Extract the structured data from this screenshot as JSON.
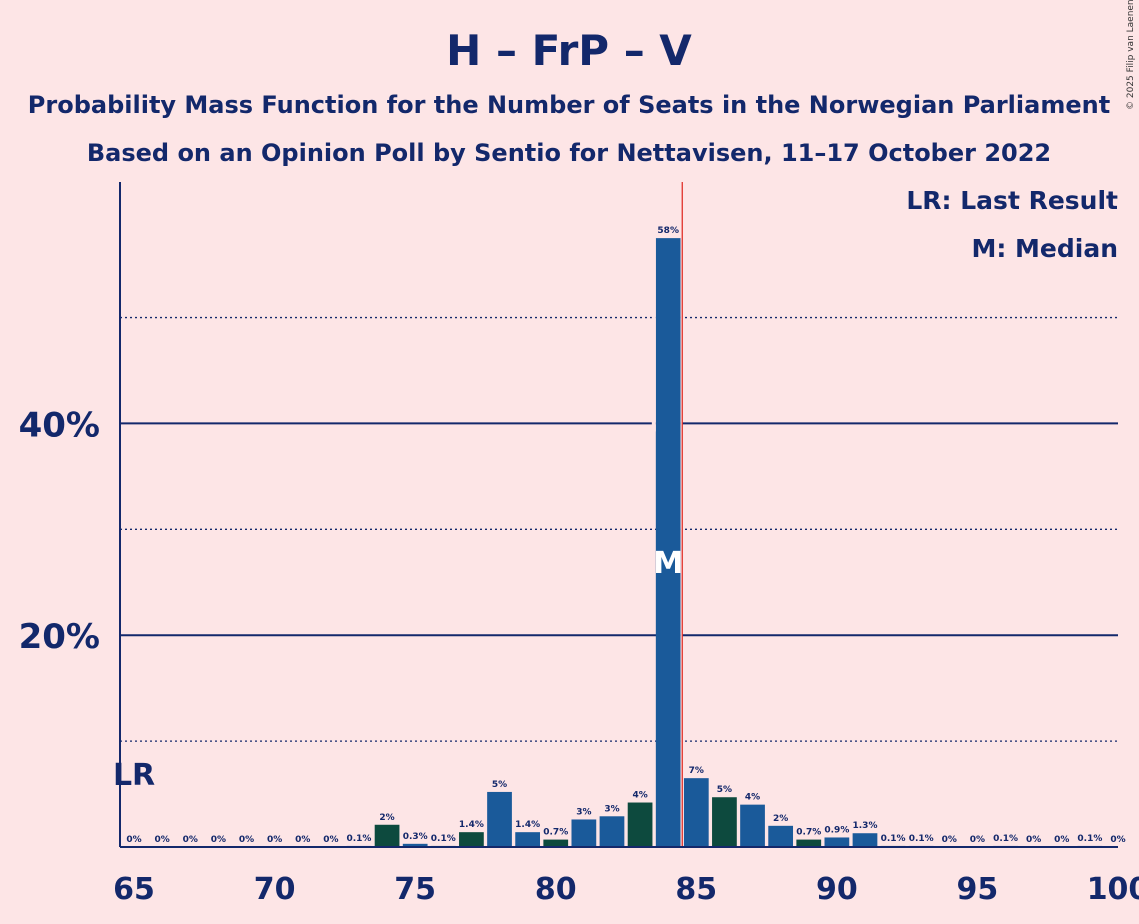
{
  "chart_data": {
    "type": "bar",
    "title": "H – FrP – V",
    "subtitle_line1": "Probability Mass Function for the Number of Seats in the Norwegian Parliament",
    "subtitle_line2": "Based on an Opinion Poll by Sentio for Nettavisen, 11–17 October 2022",
    "copyright": "© 2025 Filip van Laenen",
    "legend": {
      "lr": "LR: Last Result",
      "m": "M: Median",
      "placement": "top-right"
    },
    "lr_label": "LR",
    "median_label": "M",
    "last_result": 65,
    "median": 84,
    "majority_line": 84.5,
    "xlim": [
      65,
      100
    ],
    "ylim": [
      0,
      62.8
    ],
    "x_ticks": [
      65,
      70,
      75,
      80,
      85,
      90,
      95,
      100
    ],
    "y_ticks": [
      {
        "value": 20,
        "label": "20%"
      },
      {
        "value": 40,
        "label": "40%"
      }
    ],
    "minor_gridlines": [
      10,
      30,
      50
    ],
    "seats": [
      65,
      66,
      67,
      68,
      69,
      70,
      71,
      72,
      73,
      74,
      75,
      76,
      77,
      78,
      79,
      80,
      81,
      82,
      83,
      84,
      85,
      86,
      87,
      88,
      89,
      90,
      91,
      92,
      93,
      94,
      95,
      96,
      97,
      98,
      99,
      100
    ],
    "values": [
      0,
      0,
      0,
      0,
      0,
      0,
      0,
      0,
      0.1,
      2.1,
      0.3,
      0.1,
      1.4,
      5.2,
      1.4,
      0.7,
      2.6,
      2.9,
      4.2,
      57.5,
      6.5,
      4.7,
      4.0,
      2.0,
      0.7,
      0.9,
      1.3,
      0.1,
      0.1,
      0,
      0,
      0.1,
      0,
      0,
      0.1,
      0
    ],
    "labels": [
      "0%",
      "0%",
      "0%",
      "0%",
      "0%",
      "0%",
      "0%",
      "0%",
      "0.1%",
      "2%",
      "0.3%",
      "0.1%",
      "1.4%",
      "5%",
      "1.4%",
      "0.7%",
      "3%",
      "3%",
      "4%",
      "58%",
      "7%",
      "5%",
      "4%",
      "2%",
      "0.7%",
      "0.9%",
      "1.3%",
      "0.1%",
      "0.1%",
      "0%",
      "0%",
      "0.1%",
      "0%",
      "0%",
      "0.1%",
      "0%"
    ],
    "colors": [
      "#1a5a9a",
      "#0d4a3e",
      "#1a5a9a",
      "#0d4a3e",
      "#1a5a9a",
      "#0d4a3e",
      "#1a5a9a",
      "#0d4a3e",
      "#1a5a9a",
      "#0d4a3e",
      "#1a5a9a",
      "#0d4a3e",
      "#0d4a3e",
      "#1a5a9a",
      "#1a5a9a",
      "#0d4a3e",
      "#1a5a9a",
      "#1a5a9a",
      "#0d4a3e",
      "#1a5a9a",
      "#1a5a9a",
      "#0d4a3e",
      "#1a5a9a",
      "#1a5a9a",
      "#0d4a3e",
      "#1a5a9a",
      "#1a5a9a",
      "#0d4a3e",
      "#1a5a9a",
      "#1a5a9a",
      "#0d4a3e",
      "#1a5a9a",
      "#1a5a9a",
      "#0d4a3e",
      "#1a5a9a",
      "#1a5a9a"
    ],
    "palette": {
      "background": "#fde5e6",
      "text": "#13286b",
      "majority_line": "#e0302a"
    }
  }
}
